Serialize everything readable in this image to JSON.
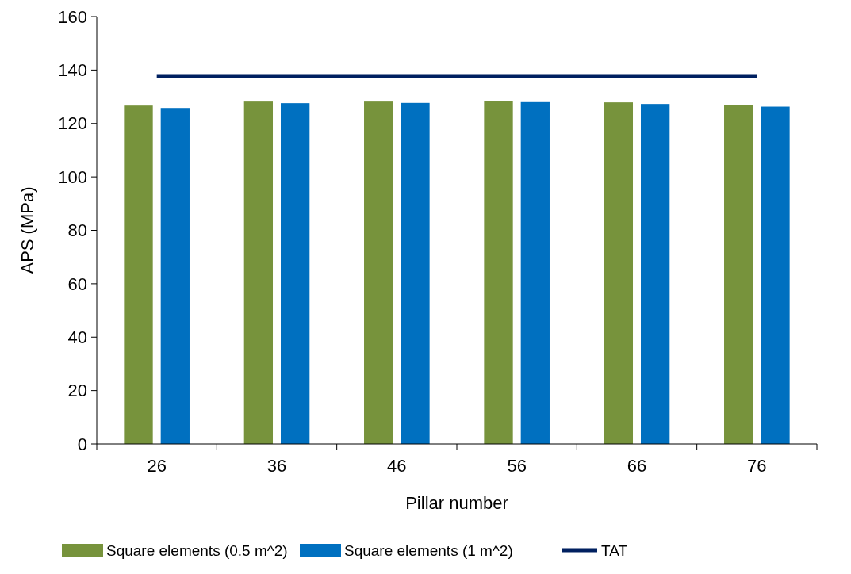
{
  "chart_data": {
    "type": "bar",
    "xlabel": "Pillar number",
    "ylabel": "APS (MPa)",
    "categories": [
      "26",
      "36",
      "46",
      "56",
      "66",
      "76"
    ],
    "series": [
      {
        "name": "Square elements (0.5 m^2)",
        "color": "#77933c",
        "values": [
          126.7,
          128.2,
          128.2,
          128.5,
          127.9,
          127.0
        ]
      },
      {
        "name": "Square elements (1 m^2)",
        "color": "#0070c0",
        "values": [
          125.8,
          127.6,
          127.7,
          128.0,
          127.3,
          126.3
        ]
      },
      {
        "name": "TAT",
        "type": "line",
        "color": "#002060",
        "values": [
          137.7,
          137.7,
          137.7,
          137.7,
          137.7,
          137.7
        ],
        "marker": "none"
      }
    ],
    "ylim": [
      0,
      160
    ],
    "yticks": [
      0,
      20,
      40,
      60,
      80,
      100,
      120,
      140,
      160
    ],
    "grid": false,
    "legend": "bottom"
  }
}
